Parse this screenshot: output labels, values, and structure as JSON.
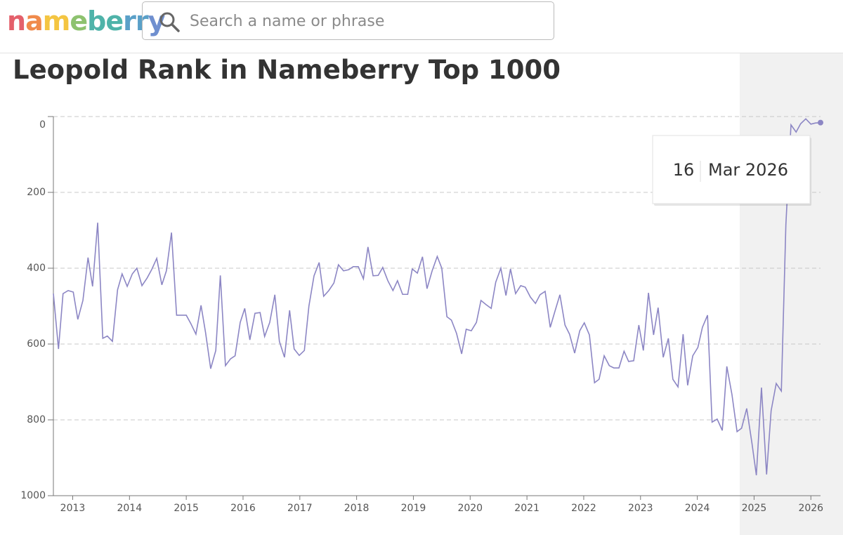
{
  "header": {
    "logo": "nameberry",
    "search_placeholder": "Search a name or phrase"
  },
  "chart_data": {
    "type": "line",
    "title": "Leopold Rank in Nameberry Top 1000",
    "color": "#8c86c4",
    "x": [
      2012.66,
      2012.75,
      2012.83,
      2012.92,
      2013.01,
      2013.09,
      2013.18,
      2013.27,
      2013.35,
      2013.44,
      2013.53,
      2013.61,
      2013.7,
      2013.79,
      2013.87,
      2013.96,
      2014.05,
      2014.13,
      2014.22,
      2014.31,
      2014.39,
      2014.48,
      2014.57,
      2014.65,
      2014.74,
      2014.83,
      2014.91,
      2015.0,
      2015.08,
      2015.17,
      2015.26,
      2015.34,
      2015.43,
      2015.52,
      2015.6,
      2015.69,
      2015.78,
      2015.86,
      2015.95,
      2016.03,
      2016.12,
      2016.21,
      2016.3,
      2016.38,
      2016.47,
      2016.56,
      2016.64,
      2016.73,
      2016.82,
      2016.9,
      2016.99,
      2017.08,
      2017.16,
      2017.25,
      2017.34,
      2017.42,
      2017.51,
      2017.6,
      2017.68,
      2017.77,
      2017.86,
      2017.94,
      2018.03,
      2018.12,
      2018.2,
      2018.29,
      2018.38,
      2018.46,
      2018.55,
      2018.64,
      2018.72,
      2018.81,
      2018.9,
      2018.98,
      2019.07,
      2019.16,
      2019.24,
      2019.33,
      2019.42,
      2019.5,
      2019.59,
      2019.67,
      2019.76,
      2019.85,
      2019.93,
      2020.02,
      2020.11,
      2020.19,
      2020.28,
      2020.37,
      2020.45,
      2020.54,
      2020.63,
      2020.71,
      2020.8,
      2020.89,
      2020.97,
      2021.06,
      2021.15,
      2021.23,
      2021.32,
      2021.41,
      2021.49,
      2021.58,
      2021.67,
      2021.75,
      2021.84,
      2021.93,
      2022.01,
      2022.1,
      2022.19,
      2022.27,
      2022.36,
      2022.45,
      2022.53,
      2022.62,
      2022.71,
      2022.79,
      2022.88,
      2022.97,
      2023.05,
      2023.14,
      2023.23,
      2023.31,
      2023.4,
      2023.49,
      2023.57,
      2023.66,
      2023.75,
      2023.83,
      2023.92,
      2024.01,
      2024.09,
      2024.18,
      2024.26,
      2024.35,
      2024.44,
      2024.52,
      2024.61,
      2024.7,
      2024.78,
      2024.87,
      2024.96,
      2025.04,
      2025.13,
      2025.22,
      2025.3,
      2025.39,
      2025.48,
      2025.56,
      2025.65,
      2025.74,
      2025.82,
      2025.91,
      2026.0,
      2026.08,
      2026.17
    ],
    "values": [
      467,
      613,
      467,
      459,
      463,
      535,
      485,
      372,
      448,
      280,
      585,
      579,
      593,
      457,
      415,
      448,
      415,
      400,
      446,
      426,
      404,
      374,
      444,
      407,
      306,
      524,
      524,
      524,
      546,
      574,
      498,
      570,
      665,
      617,
      419,
      657,
      639,
      631,
      543,
      506,
      589,
      519,
      517,
      580,
      543,
      470,
      593,
      635,
      511,
      613,
      630,
      617,
      500,
      420,
      385,
      474,
      459,
      439,
      391,
      407,
      404,
      396,
      396,
      428,
      344,
      420,
      419,
      398,
      433,
      459,
      433,
      469,
      469,
      402,
      413,
      370,
      454,
      407,
      369,
      400,
      528,
      537,
      572,
      626,
      561,
      565,
      543,
      485,
      496,
      506,
      437,
      400,
      472,
      402,
      467,
      446,
      450,
      476,
      493,
      470,
      461,
      556,
      515,
      470,
      550,
      574,
      624,
      565,
      544,
      576,
      702,
      693,
      631,
      657,
      663,
      663,
      619,
      646,
      644,
      550,
      617,
      465,
      576,
      504,
      635,
      585,
      693,
      713,
      574,
      709,
      631,
      609,
      556,
      524,
      806,
      798,
      828,
      659,
      733,
      831,
      822,
      770,
      859,
      946,
      715,
      944,
      776,
      704,
      724,
      285,
      22,
      41,
      19,
      6,
      20,
      17,
      16
    ],
    "xlim": [
      2012.66,
      2026.17
    ],
    "xticks": [
      2013,
      2014,
      2015,
      2016,
      2017,
      2018,
      2019,
      2020,
      2021,
      2022,
      2023,
      2024,
      2025,
      2026
    ],
    "ylim": [
      0,
      1000
    ],
    "yticks": [
      0,
      200,
      400,
      600,
      800,
      1000
    ],
    "y_reversed": true,
    "grid": true,
    "tooltip": {
      "value": 16,
      "date": "Mar 2026"
    }
  }
}
